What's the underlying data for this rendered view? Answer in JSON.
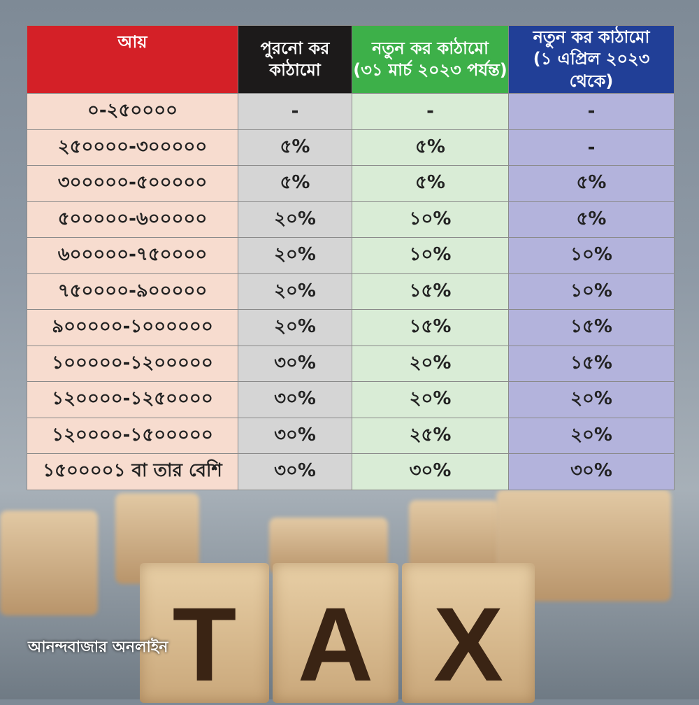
{
  "headers": [
    {
      "line1": "আয়",
      "line2": "",
      "color": "#d42027"
    },
    {
      "line1": "পুরনো কর",
      "line2": "কাঠামো",
      "color": "#1c1a1a"
    },
    {
      "line1": "নতুন কর কাঠামো",
      "line2": "(৩১ মার্চ ২০২৩ পর্যন্ত)",
      "color": "#3db049"
    },
    {
      "line1": "নতুন কর কাঠামো",
      "line2": "(১ এপ্রিল ২০২৩ থেকে)",
      "color": "#213f97"
    }
  ],
  "rows": [
    [
      "০-২৫০০০০",
      "-",
      "-",
      "-"
    ],
    [
      "২৫০০০০-৩০০০০০",
      "৫%",
      "৫%",
      "-"
    ],
    [
      "৩০০০০০-৫০০০০০",
      "৫%",
      "৫%",
      "৫%"
    ],
    [
      "৫০০০০০-৬০০০০০",
      "২০%",
      "১০%",
      "৫%"
    ],
    [
      "৬০০০০০-৭৫০০০০",
      "২০%",
      "১০%",
      "১০%"
    ],
    [
      "৭৫০০০০-৯০০০০০",
      "২০%",
      "১৫%",
      "১০%"
    ],
    [
      "৯০০০০০-১০০০০০০",
      "২০%",
      "১৫%",
      "১৫%"
    ],
    [
      "১০০০০০-১২০০০০০",
      "৩০%",
      "২০%",
      "১৫%"
    ],
    [
      "১২০০০০-১২৫০০০০",
      "৩০%",
      "২০%",
      "২০%"
    ],
    [
      "১২০০০০-১৫০০০০০",
      "৩০%",
      "২৫%",
      "২০%"
    ],
    [
      "১৫০০০০১ বা তার বেশি",
      "৩০%",
      "৩০%",
      "৩০%"
    ]
  ],
  "cubes": [
    "T",
    "A",
    "X"
  ],
  "logo": "আনন্দবাজার অনলাইন"
}
